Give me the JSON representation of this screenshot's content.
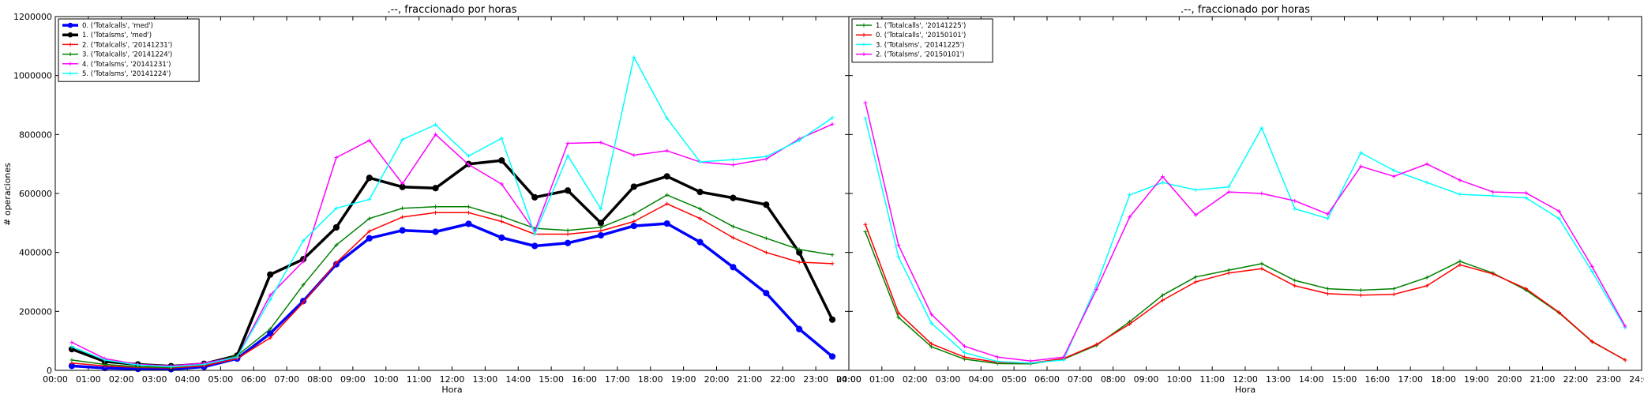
{
  "figure": {
    "ylabel": "# operaciones",
    "y_ticks": [
      "0",
      "200000",
      "400000",
      "600000",
      "800000",
      "1000000",
      "1200000"
    ],
    "x_ticks": [
      "00:00",
      "01:00",
      "02:00",
      "03:00",
      "04:00",
      "05:00",
      "06:00",
      "07:00",
      "08:00",
      "09:00",
      "10:00",
      "11:00",
      "12:00",
      "13:00",
      "14:00",
      "15:00",
      "16:00",
      "17:00",
      "18:00",
      "19:00",
      "20:00",
      "21:00",
      "22:00",
      "23:00",
      "24:00"
    ]
  },
  "chart_data": [
    {
      "type": "line",
      "title": ".--, fraccionado por horas",
      "xlabel": "Hora",
      "ylabel": "# operaciones",
      "xlim": [
        0,
        24
      ],
      "ylim": [
        0,
        1200000
      ],
      "legend_position": "top-left",
      "grid": false,
      "x": [
        0.5,
        1.5,
        2.5,
        3.5,
        4.5,
        5.5,
        6.5,
        7.5,
        8.5,
        9.5,
        10.5,
        11.5,
        12.5,
        13.5,
        14.5,
        15.5,
        16.5,
        17.5,
        18.5,
        19.5,
        20.5,
        21.5,
        22.5,
        23.5
      ],
      "series": [
        {
          "name": "0. ('Totalcalls', 'med')",
          "color": "#0000ff",
          "width": 3.5,
          "marker": "dot",
          "values": [
            15000,
            8000,
            5000,
            4000,
            12000,
            40000,
            125000,
            235000,
            360000,
            448000,
            475000,
            470000,
            497000,
            450000,
            422000,
            432000,
            458000,
            490000,
            498000,
            435000,
            350000,
            262000,
            140000,
            47000
          ]
        },
        {
          "name": "1. ('Totalsms', 'med')",
          "color": "#000000",
          "width": 3.5,
          "marker": "dot",
          "values": [
            72000,
            30000,
            20000,
            14000,
            22000,
            50000,
            325000,
            377000,
            485000,
            653000,
            622000,
            618000,
            700000,
            712000,
            587000,
            610000,
            500000,
            623000,
            658000,
            605000,
            585000,
            562000,
            400000,
            172000
          ]
        },
        {
          "name": "2. ('Totalcalls', '20141231')",
          "color": "#ff0000",
          "width": 1.5,
          "marker": "tick",
          "values": [
            25000,
            15000,
            10000,
            8000,
            15000,
            40000,
            110000,
            230000,
            365000,
            472000,
            520000,
            535000,
            535000,
            505000,
            462000,
            462000,
            473000,
            505000,
            565000,
            515000,
            450000,
            400000,
            367000,
            362000
          ]
        },
        {
          "name": "3. ('Totalcalls', '20141224')",
          "color": "#008000",
          "width": 1.5,
          "marker": "tick",
          "values": [
            35000,
            20000,
            12000,
            10000,
            20000,
            50000,
            140000,
            290000,
            425000,
            515000,
            550000,
            555000,
            555000,
            522000,
            482000,
            475000,
            485000,
            530000,
            595000,
            548000,
            488000,
            448000,
            410000,
            392000
          ]
        },
        {
          "name": "4. ('Totalsms', '20141231')",
          "color": "#ff00ff",
          "width": 1.5,
          "marker": "tick",
          "values": [
            95000,
            40000,
            20000,
            15000,
            25000,
            45000,
            255000,
            370000,
            722000,
            780000,
            633000,
            800000,
            698000,
            632000,
            472000,
            770000,
            773000,
            730000,
            745000,
            707000,
            697000,
            717000,
            785000,
            835000
          ]
        },
        {
          "name": "5. ('Totalsms', '20141224')",
          "color": "#00ffff",
          "width": 1.5,
          "marker": "tick",
          "values": [
            80000,
            35000,
            18000,
            12000,
            20000,
            45000,
            240000,
            440000,
            550000,
            580000,
            783000,
            833000,
            727000,
            787000,
            462000,
            728000,
            548000,
            1062000,
            855000,
            707000,
            715000,
            725000,
            780000,
            857000
          ]
        }
      ]
    },
    {
      "type": "line",
      "title": ".--, fraccionado por horas",
      "xlabel": "Hora",
      "xlim": [
        0,
        24
      ],
      "ylim": [
        0,
        1200000
      ],
      "legend_position": "top-left",
      "grid": false,
      "x": [
        0.5,
        1.5,
        2.5,
        3.5,
        4.5,
        5.5,
        6.5,
        7.5,
        8.5,
        9.5,
        10.5,
        11.5,
        12.5,
        13.5,
        14.5,
        15.5,
        16.5,
        17.5,
        18.5,
        19.5,
        20.5,
        21.5,
        22.5,
        23.5
      ],
      "series": [
        {
          "name": "1. ('Totalcalls', '20141225')",
          "color": "#008000",
          "width": 1.5,
          "marker": "tick",
          "values": [
            470000,
            180000,
            80000,
            38000,
            23000,
            22000,
            38000,
            85000,
            165000,
            255000,
            317000,
            340000,
            362000,
            305000,
            277000,
            272000,
            277000,
            315000,
            370000,
            330000,
            272000,
            195000,
            97000,
            35000
          ]
        },
        {
          "name": "0. ('Totalcalls', '20150101')",
          "color": "#ff0000",
          "width": 1.5,
          "marker": "tick",
          "values": [
            495000,
            195000,
            90000,
            45000,
            27000,
            25000,
            40000,
            88000,
            157000,
            238000,
            300000,
            330000,
            345000,
            287000,
            260000,
            255000,
            258000,
            287000,
            358000,
            327000,
            277000,
            197000,
            98000,
            35000
          ]
        },
        {
          "name": "3. ('Totalsms', '20141225')",
          "color": "#00ffff",
          "width": 1.5,
          "marker": "tick",
          "values": [
            855000,
            385000,
            160000,
            60000,
            30000,
            25000,
            35000,
            290000,
            595000,
            637000,
            612000,
            622000,
            822000,
            548000,
            515000,
            738000,
            678000,
            637000,
            597000,
            592000,
            585000,
            515000,
            335000,
            145000
          ]
        },
        {
          "name": "2. ('Totalsms', '20150101')",
          "color": "#ff00ff",
          "width": 1.5,
          "marker": "tick",
          "values": [
            908000,
            425000,
            190000,
            82000,
            45000,
            32000,
            45000,
            275000,
            520000,
            657000,
            527000,
            605000,
            600000,
            575000,
            530000,
            692000,
            658000,
            700000,
            645000,
            605000,
            602000,
            540000,
            352000,
            150000
          ]
        }
      ]
    }
  ]
}
